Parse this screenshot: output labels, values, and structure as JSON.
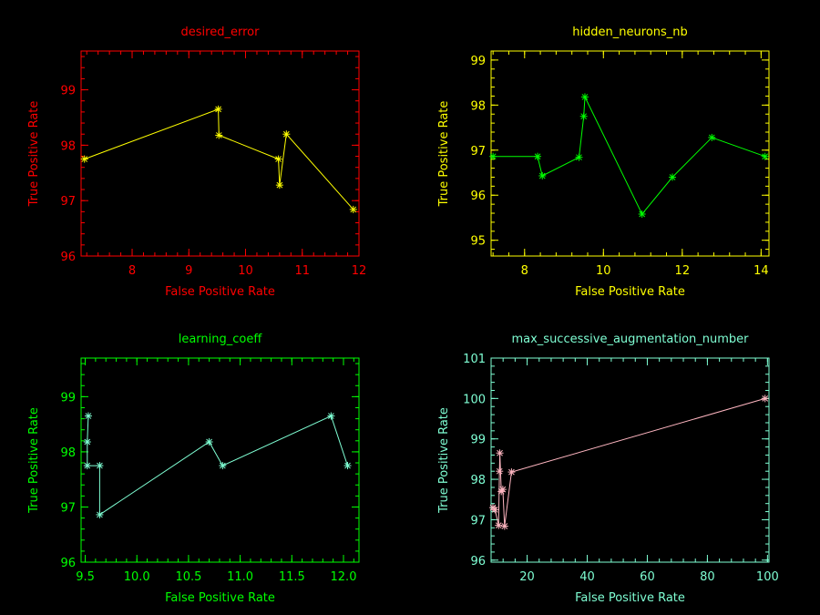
{
  "chart_data": [
    {
      "type": "line",
      "title": "desired_error",
      "xlabel": "False Positive Rate",
      "ylabel": "True Positive Rate",
      "xlim": [
        7.1,
        12.0
      ],
      "ylim": [
        96.0,
        99.7
      ],
      "xticks": [
        8,
        9,
        10,
        11,
        12
      ],
      "xtick_labels": [
        "8",
        "9",
        "10",
        "11",
        "12"
      ],
      "yticks": [
        96,
        97,
        98,
        99
      ],
      "ytick_labels": [
        "96",
        "97",
        "98",
        "99"
      ],
      "axis_color": "#ff0000",
      "line_color": "#ffff00",
      "series": [
        {
          "x": [
            7.16,
            9.52,
            9.53,
            10.58,
            10.6,
            10.72,
            11.9
          ],
          "y": [
            97.75,
            98.65,
            98.18,
            97.75,
            97.28,
            98.2,
            96.84
          ]
        }
      ]
    },
    {
      "type": "line",
      "title": "hidden_neurons_nb",
      "xlabel": "False Positive Rate",
      "ylabel": "True Positive Rate",
      "xlim": [
        7.15,
        14.2
      ],
      "ylim": [
        94.65,
        99.2
      ],
      "xticks": [
        8,
        10,
        12,
        14
      ],
      "xtick_labels": [
        "8",
        "10",
        "12",
        "14"
      ],
      "yticks": [
        95,
        96,
        97,
        98,
        99
      ],
      "ytick_labels": [
        "95",
        "96",
        "97",
        "98",
        "99"
      ],
      "axis_color": "#ffff00",
      "line_color": "#00ff00",
      "series": [
        {
          "x": [
            7.2,
            8.33,
            8.45,
            9.38,
            9.5,
            9.53,
            10.98,
            11.75,
            12.75,
            14.1
          ],
          "y": [
            96.86,
            96.86,
            96.43,
            96.84,
            97.75,
            98.18,
            95.58,
            96.4,
            97.28,
            96.86
          ]
        }
      ]
    },
    {
      "type": "line",
      "title": "learning_coeff",
      "xlabel": "False Positive Rate",
      "ylabel": "True Positive Rate",
      "xlim": [
        9.46,
        12.15
      ],
      "ylim": [
        96.0,
        99.7
      ],
      "xticks": [
        9.5,
        10.0,
        10.5,
        11.0,
        11.5,
        12.0
      ],
      "xtick_labels": [
        "9.5",
        "10.0",
        "10.5",
        "11.0",
        "11.5",
        "12.0"
      ],
      "yticks": [
        96,
        97,
        98,
        99
      ],
      "ytick_labels": [
        "96",
        "97",
        "98",
        "99"
      ],
      "axis_color": "#00ff00",
      "line_color": "#7fffd4",
      "series": [
        {
          "x": [
            9.53,
            9.52,
            9.52,
            9.64,
            9.64,
            10.7,
            10.83,
            11.88,
            12.04
          ],
          "y": [
            98.65,
            98.18,
            97.75,
            97.75,
            96.86,
            98.18,
            97.75,
            98.65,
            97.75
          ]
        }
      ]
    },
    {
      "type": "line",
      "title": "max_successive_augmentation_number",
      "xlabel": "False Positive Rate",
      "ylabel": "True Positive Rate",
      "xlim": [
        8,
        100.5
      ],
      "ylim": [
        95.95,
        101.0
      ],
      "xticks": [
        20,
        40,
        60,
        80,
        100
      ],
      "xtick_labels": [
        "20",
        "40",
        "60",
        "80",
        "100"
      ],
      "yticks": [
        96,
        97,
        98,
        99,
        100,
        101
      ],
      "ytick_labels": [
        "96",
        "97",
        "98",
        "99",
        "100",
        "101"
      ],
      "axis_color": "#7fffd4",
      "line_color": "#ffb6c1",
      "series": [
        {
          "x": [
            8.6,
            9.3,
            10.5,
            10.8,
            10.9,
            11.4,
            11.9,
            12.5,
            14.8,
            99.2
          ],
          "y": [
            97.3,
            97.25,
            96.86,
            98.2,
            98.65,
            97.7,
            97.75,
            96.84,
            98.18,
            100.0
          ]
        }
      ]
    }
  ]
}
